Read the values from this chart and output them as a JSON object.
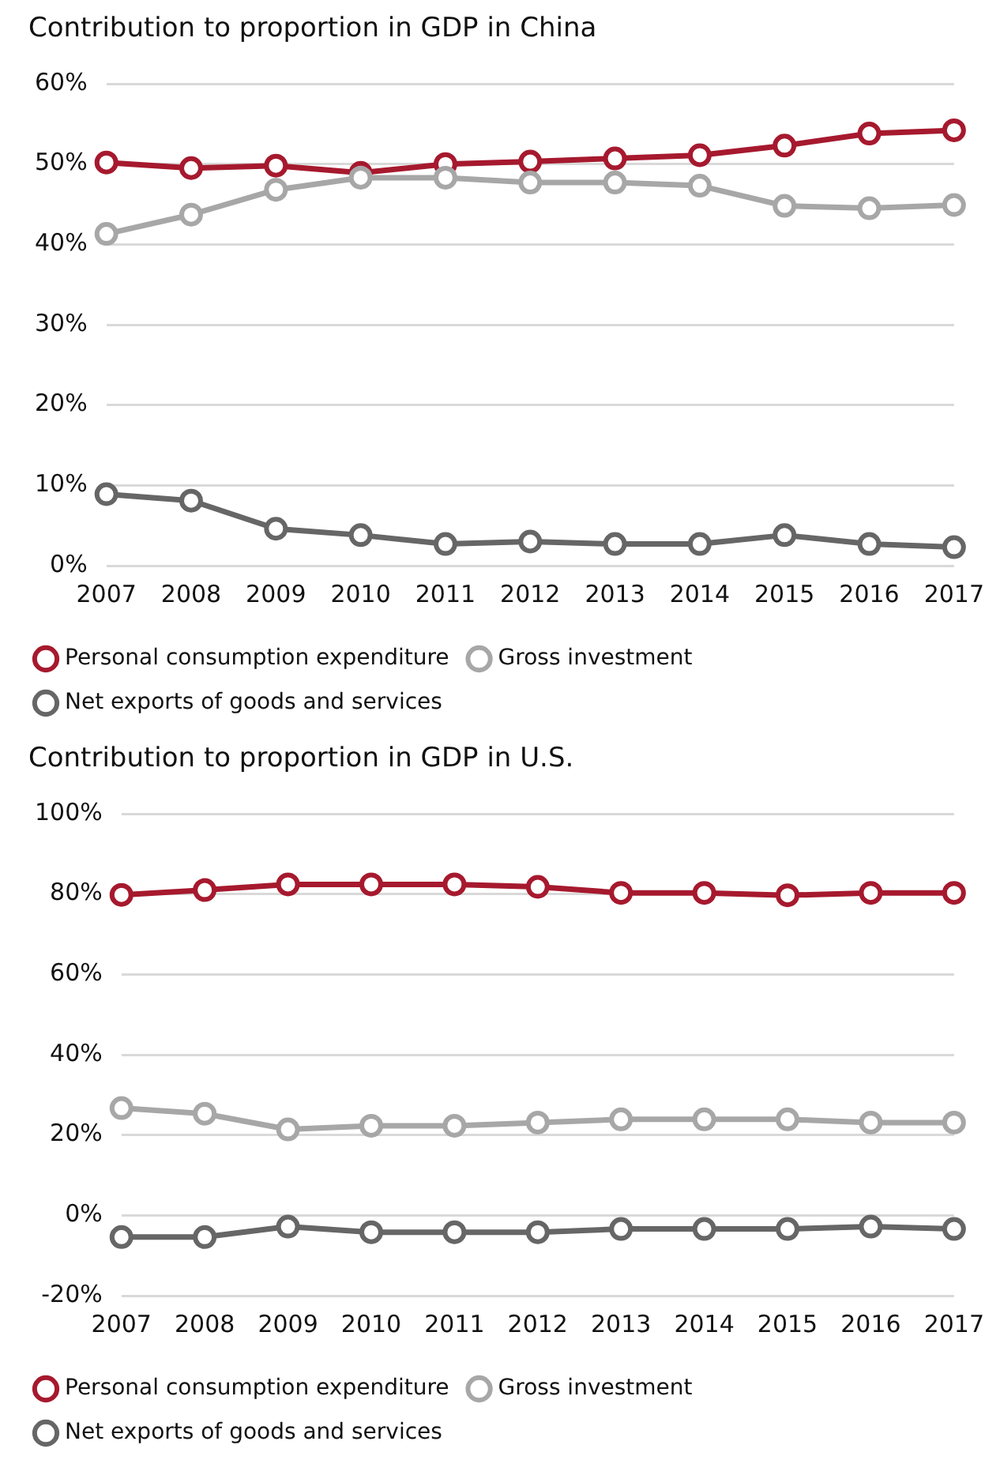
{
  "chart_data": [
    {
      "type": "line",
      "title": "Contribution to proportion in GDP in China",
      "categories": [
        "2007",
        "2008",
        "2009",
        "2010",
        "2011",
        "2012",
        "2013",
        "2014",
        "2015",
        "2016",
        "2017"
      ],
      "series": [
        {
          "name": "Personal consumption expenditure",
          "color": "#a6192e",
          "values": [
            50.2,
            49.5,
            49.8,
            48.9,
            50.0,
            50.3,
            50.7,
            51.1,
            52.3,
            53.8,
            54.2
          ]
        },
        {
          "name": "Gross investment",
          "color": "#a7a7a7",
          "values": [
            41.3,
            43.7,
            46.8,
            48.3,
            48.3,
            47.7,
            47.7,
            47.3,
            44.8,
            44.5,
            44.9
          ]
        },
        {
          "name": "Net exports of goods and services",
          "color": "#666666",
          "values": [
            8.9,
            8.1,
            4.6,
            3.8,
            2.7,
            3.0,
            2.7,
            2.7,
            3.8,
            2.7,
            2.3
          ]
        }
      ],
      "ylim": [
        0,
        60
      ],
      "yticks": [
        {
          "value": 0,
          "label": "0%"
        },
        {
          "value": 10,
          "label": "10%"
        },
        {
          "value": 20,
          "label": "20%"
        },
        {
          "value": 30,
          "label": "30%"
        },
        {
          "value": 40,
          "label": "40%"
        },
        {
          "value": 50,
          "label": "50%"
        },
        {
          "value": 60,
          "label": "60%"
        }
      ],
      "grid": "y",
      "legend": "bottom",
      "marker": "circle",
      "line_style": "solid"
    },
    {
      "type": "line",
      "title": "Contribution to proportion in GDP in U.S.",
      "categories": [
        "2007",
        "2008",
        "2009",
        "2010",
        "2011",
        "2012",
        "2013",
        "2014",
        "2015",
        "2016",
        "2017"
      ],
      "series": [
        {
          "name": "Personal consumption expenditure",
          "color": "#a6192e",
          "values": [
            79.8,
            81.0,
            82.4,
            82.4,
            82.4,
            81.8,
            80.3,
            80.3,
            79.7,
            80.3,
            80.3
          ]
        },
        {
          "name": "Gross investment",
          "color": "#a7a7a7",
          "values": [
            26.7,
            25.3,
            21.4,
            22.3,
            22.3,
            23.1,
            23.9,
            23.9,
            23.9,
            23.1,
            23.1
          ]
        },
        {
          "name": "Net exports of goods and services",
          "color": "#666666",
          "values": [
            -5.4,
            -5.4,
            -2.8,
            -4.2,
            -4.2,
            -4.2,
            -3.4,
            -3.4,
            -3.4,
            -2.8,
            -3.4
          ]
        }
      ],
      "ylim": [
        -20,
        100
      ],
      "yticks": [
        {
          "value": -20,
          "label": "-20%"
        },
        {
          "value": 0,
          "label": "0%"
        },
        {
          "value": 20,
          "label": "20%"
        },
        {
          "value": 40,
          "label": "40%"
        },
        {
          "value": 60,
          "label": "60%"
        },
        {
          "value": 80,
          "label": "80%"
        },
        {
          "value": 100,
          "label": "100%"
        }
      ],
      "grid": "y",
      "legend": "bottom",
      "marker": "circle",
      "line_style": "solid"
    }
  ]
}
